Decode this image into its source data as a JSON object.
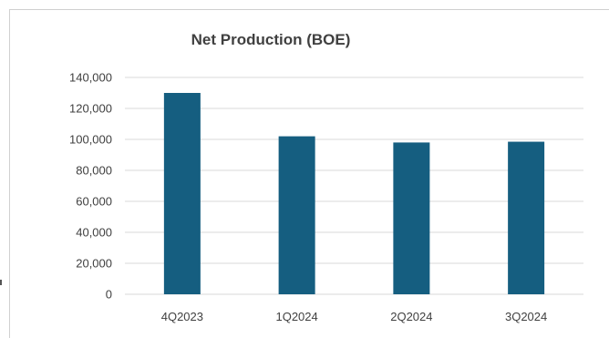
{
  "chart_data": {
    "type": "bar",
    "title": "Net Production (BOE)",
    "xlabel": "",
    "ylabel": "",
    "categories": [
      "4Q2023",
      "1Q2024",
      "2Q2024",
      "3Q2024"
    ],
    "values": [
      130000,
      102000,
      98000,
      98500
    ],
    "ylim": [
      0,
      140000
    ],
    "yticks": [
      0,
      20000,
      40000,
      60000,
      80000,
      100000,
      120000,
      140000
    ],
    "ytick_labels": [
      "0",
      "20,000",
      "40,000",
      "60,000",
      "80,000",
      "100,000",
      "120,000",
      "140,000"
    ],
    "grid": true,
    "legend": "none",
    "bar_color": "#155e80"
  }
}
